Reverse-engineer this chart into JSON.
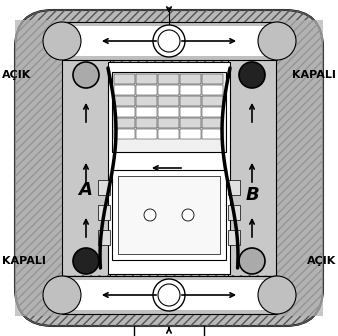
{
  "bg_color": "#ffffff",
  "label_A": "A",
  "label_B": "B",
  "label_acik_top_left": "AÇIK",
  "label_kapali_top_right": "KAPALI",
  "label_kapali_bottom_left": "KAPALI",
  "label_acik_bottom_right": "AÇIK",
  "outer_fill": "#c8c8c8",
  "inner_fill": "#e0e0e0",
  "white": "#ffffff",
  "dark": "#1a1a1a",
  "mid_gray": "#999999",
  "light_gray": "#bbbbbb",
  "black": "#000000",
  "label_fontsize": 8,
  "AB_fontsize": 13
}
